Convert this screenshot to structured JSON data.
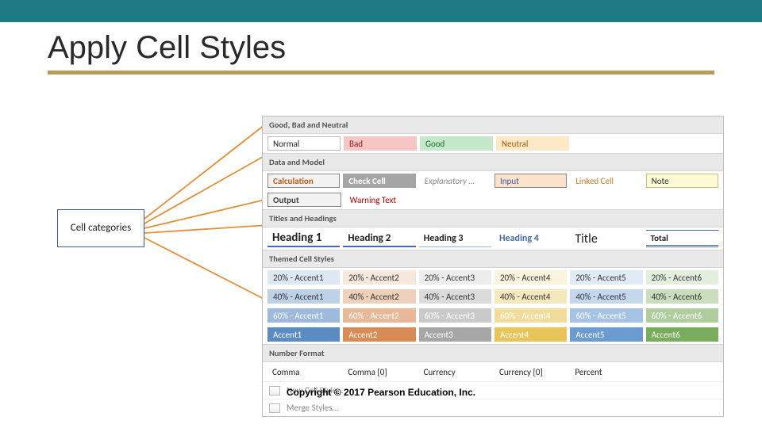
{
  "slide": {
    "title": "Apply Cell Styles",
    "underline_color": "#b89a5a",
    "top_bar_color": "#1e7a85"
  },
  "callout": {
    "label": "Cell categories",
    "border_color": "#3b5ba5",
    "line_color": "#e28f3a"
  },
  "gallery": {
    "sections": {
      "gbn": {
        "header": "Good, Bad and Neutral",
        "tiles": [
          {
            "label": "Normal",
            "bg": "#ffffff",
            "fg": "#222222",
            "border": "#bbbbbb"
          },
          {
            "label": "Bad",
            "bg": "#f6c6c4",
            "fg": "#8b1a1a",
            "border": "#f6c6c4"
          },
          {
            "label": "Good",
            "bg": "#c5e8ca",
            "fg": "#1d6a2d",
            "border": "#c5e8ca"
          },
          {
            "label": "Neutral",
            "bg": "#fde9c8",
            "fg": "#a05a00",
            "border": "#fde9c8"
          }
        ]
      },
      "dm": {
        "header": "Data and Model",
        "row1": [
          {
            "label": "Calculation",
            "bg": "#f2f2f2",
            "fg": "#c15a12",
            "border": "#888888",
            "bold": true
          },
          {
            "label": "Check Cell",
            "bg": "#a5a5a5",
            "fg": "#ffffff",
            "border": "#a5a5a5",
            "bold": true
          },
          {
            "label": "Explanatory …",
            "bg": "#ffffff",
            "fg": "#888888",
            "border": "#ffffff",
            "italic": true
          },
          {
            "label": "Input",
            "bg": "#fbe2cd",
            "fg": "#3b5ba5",
            "border": "#888888"
          },
          {
            "label": "Linked Cell",
            "bg": "#ffffff",
            "fg": "#d07a2a",
            "border": "#ffffff"
          },
          {
            "label": "Note",
            "bg": "#fff9d8",
            "fg": "#333333",
            "border": "#c9c077"
          }
        ],
        "row2": [
          {
            "label": "Output",
            "bg": "#f2f2f2",
            "fg": "#444444",
            "border": "#888888",
            "bold": true
          },
          {
            "label": "Warning Text",
            "bg": "#ffffff",
            "fg": "#c00000",
            "border": "#ffffff"
          }
        ]
      },
      "th": {
        "header": "Titles and Headings",
        "tiles": [
          {
            "label": "Heading 1",
            "cls": "hdg1"
          },
          {
            "label": "Heading 2",
            "cls": "hdg2"
          },
          {
            "label": "Heading 3",
            "cls": "hdg3"
          },
          {
            "label": "Heading 4",
            "cls": "hdg4"
          },
          {
            "label": "Title",
            "cls": "htitle"
          },
          {
            "label": "Total",
            "cls": "htotal"
          }
        ]
      },
      "themed": {
        "header": "Themed Cell Styles",
        "accent_colors": [
          "#5b8bc3",
          "#d88b55",
          "#a6a6a6",
          "#e8c55a",
          "#6a9bd1",
          "#7aac5d"
        ],
        "rows": [
          {
            "prefix": "20% - Accent",
            "bg_tint": 0.2,
            "fg": "#333333"
          },
          {
            "prefix": "40% - Accent",
            "bg_tint": 0.4,
            "fg": "#333333"
          },
          {
            "prefix": "60% - Accent",
            "bg_tint": 0.6,
            "fg": "#ffffff"
          },
          {
            "prefix": "Accent",
            "bg_tint": 1.0,
            "fg": "#ffffff",
            "no_pct": true
          }
        ]
      },
      "nf": {
        "header": "Number Format",
        "tiles": [
          {
            "label": "Comma"
          },
          {
            "label": "Comma [0]"
          },
          {
            "label": "Currency"
          },
          {
            "label": "Currency [0]"
          },
          {
            "label": "Percent"
          }
        ]
      }
    },
    "links": {
      "new_style": "New Cell Style…",
      "merge_styles": "Merge Styles…"
    }
  },
  "footer": "Copyright © 2017 Pearson Education, Inc."
}
